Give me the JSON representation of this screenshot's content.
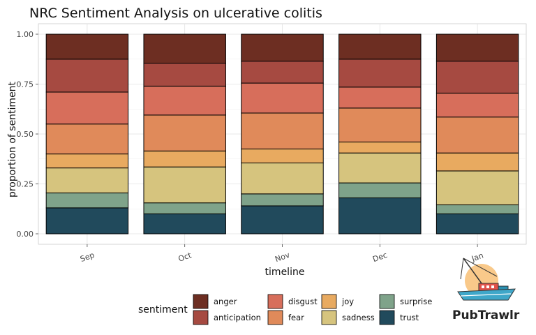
{
  "chart_data": {
    "type": "bar",
    "stacked": true,
    "title": "NRC Sentiment Analysis on ulcerative colitis",
    "xlabel": "timeline",
    "ylabel": "proportion of sentiment",
    "ylim": [
      0,
      1
    ],
    "yticks": [
      "0.00",
      "0.25",
      "0.50",
      "0.75",
      "1.00"
    ],
    "categories": [
      "Sep",
      "Oct",
      "Nov",
      "Dec",
      "Jan"
    ],
    "legend_title": "sentiment",
    "legend_position": "bottom",
    "grid": true,
    "series": [
      {
        "name": "trust",
        "color": "#214a5c",
        "values": [
          0.13,
          0.1,
          0.14,
          0.18,
          0.1
        ]
      },
      {
        "name": "surprise",
        "color": "#7fa38a",
        "values": [
          0.075,
          0.055,
          0.06,
          0.075,
          0.045
        ]
      },
      {
        "name": "sadness",
        "color": "#d6c47e",
        "values": [
          0.125,
          0.18,
          0.155,
          0.15,
          0.17
        ]
      },
      {
        "name": "joy",
        "color": "#e8aa60",
        "values": [
          0.07,
          0.08,
          0.07,
          0.055,
          0.09
        ]
      },
      {
        "name": "fear",
        "color": "#e08a5a",
        "values": [
          0.15,
          0.18,
          0.18,
          0.17,
          0.18
        ]
      },
      {
        "name": "disgust",
        "color": "#d76e5b",
        "values": [
          0.16,
          0.145,
          0.15,
          0.105,
          0.12
        ]
      },
      {
        "name": "anticipation",
        "color": "#a64a41",
        "values": [
          0.165,
          0.115,
          0.11,
          0.14,
          0.16
        ]
      },
      {
        "name": "anger",
        "color": "#6d2e22",
        "values": [
          0.125,
          0.145,
          0.135,
          0.125,
          0.135
        ]
      }
    ],
    "legend_order": [
      "anger",
      "anticipation",
      "disgust",
      "fear",
      "joy",
      "sadness",
      "surprise",
      "trust"
    ]
  },
  "logo": {
    "text": "PubTrawlr",
    "icon": "fishing-boat-icon",
    "sun_color": "#f9c98a",
    "hull_color": "#3fa7c9",
    "cabin_color": "#e0524a"
  }
}
